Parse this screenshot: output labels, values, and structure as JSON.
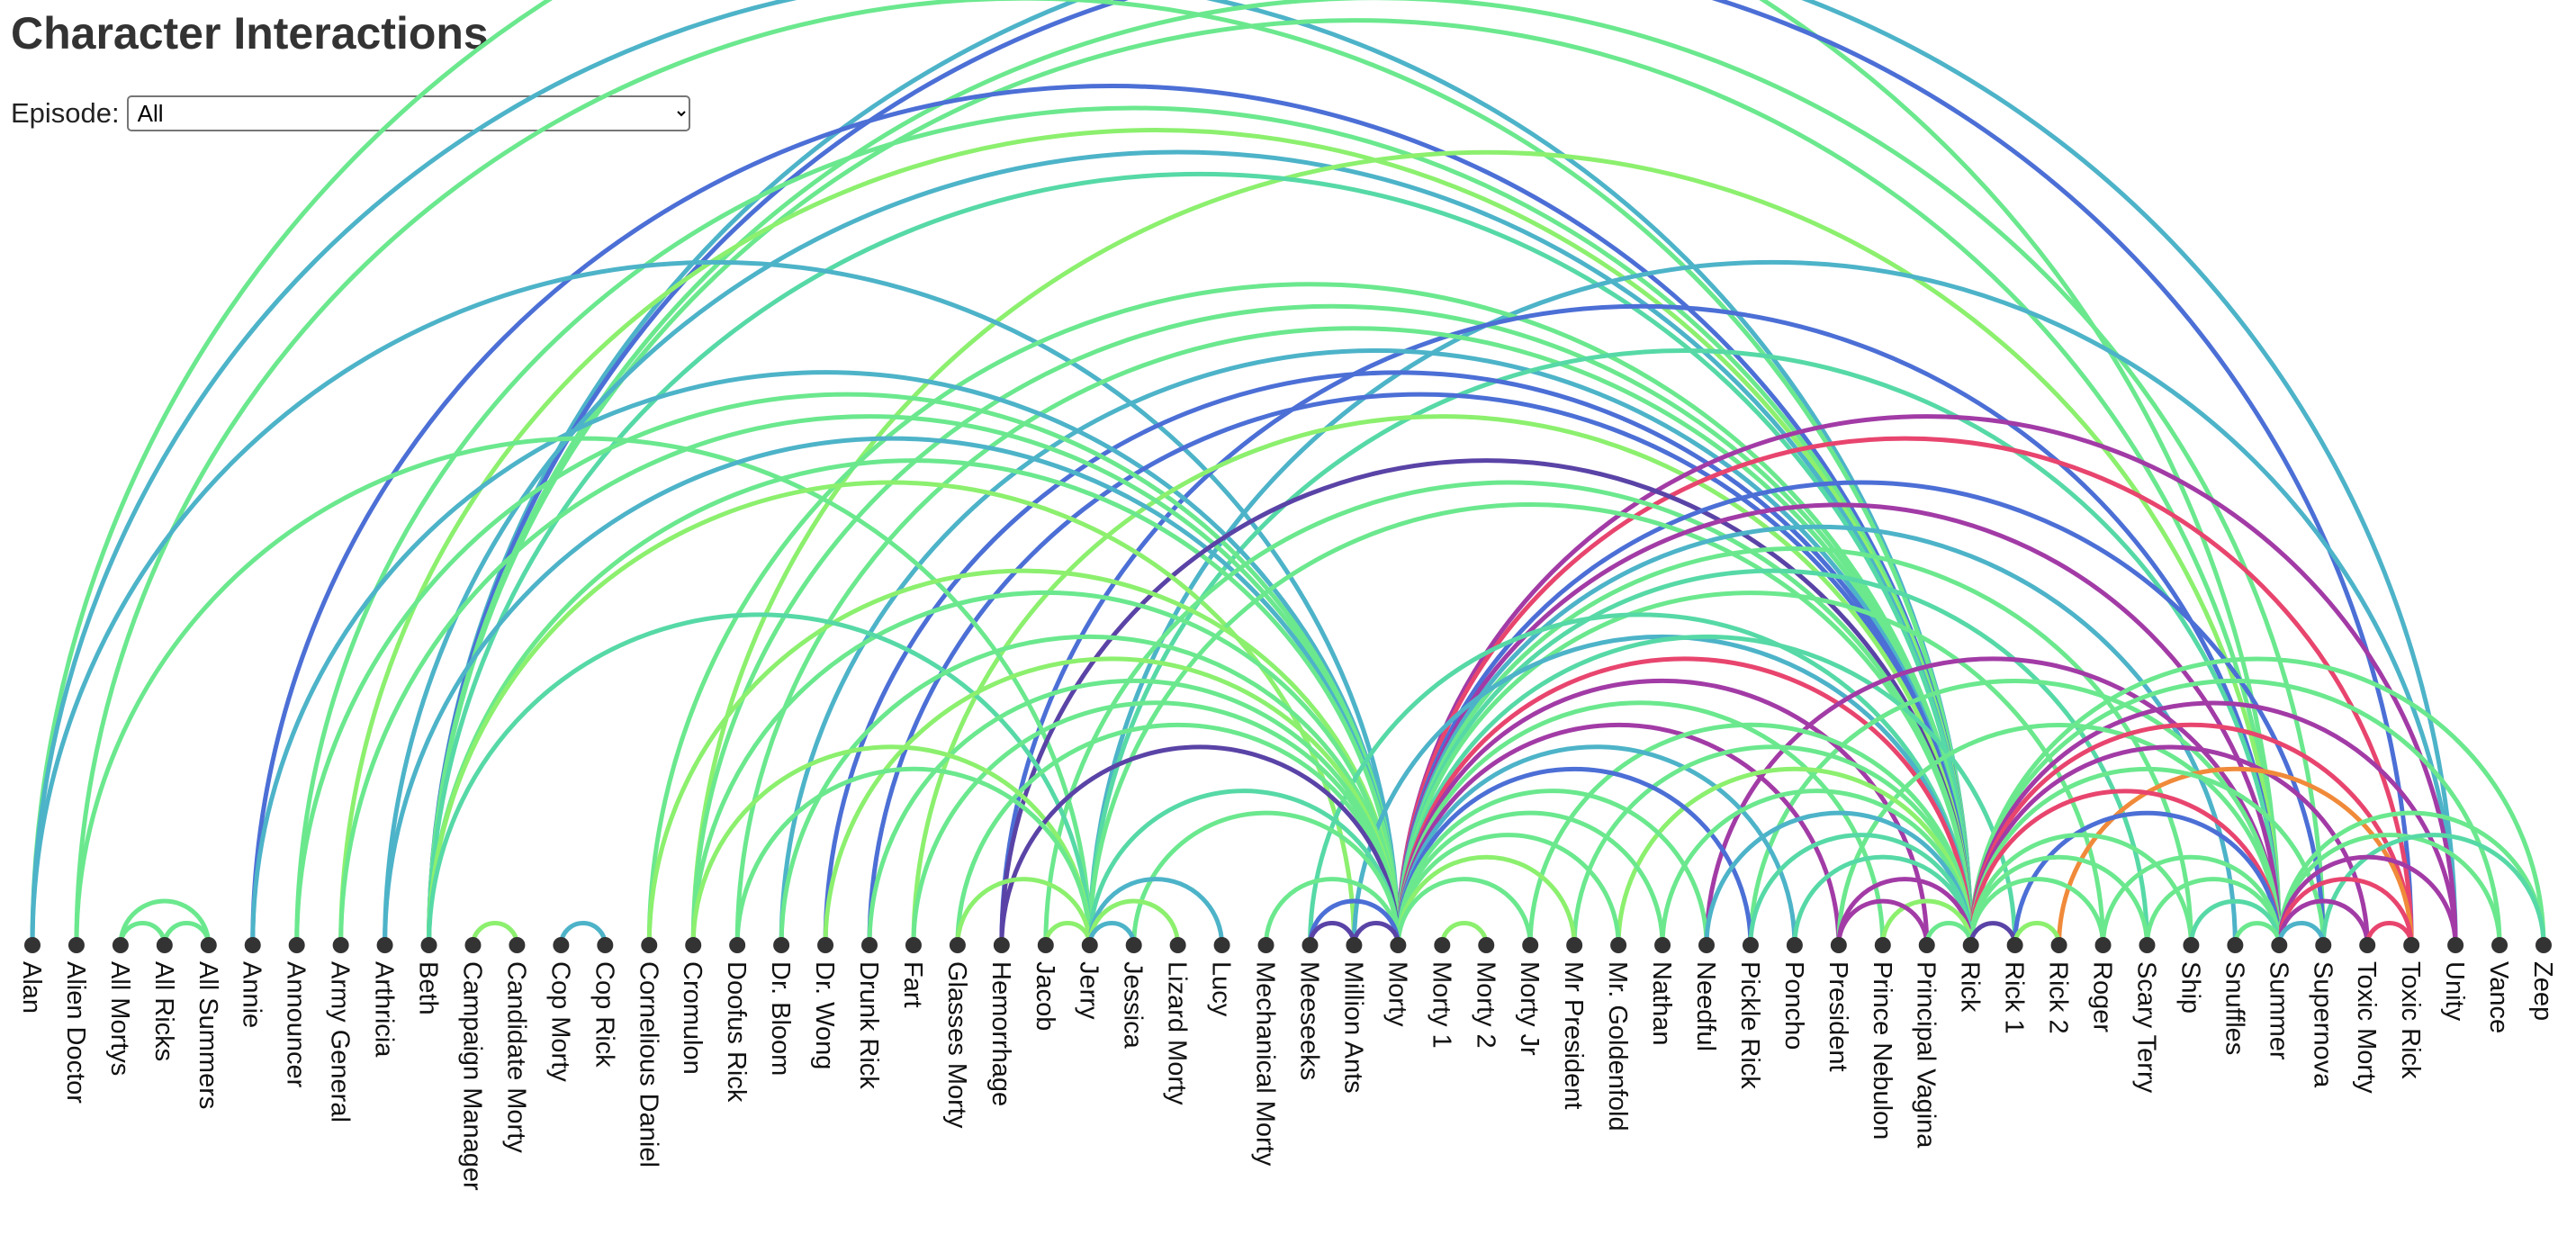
{
  "title": "Character Interactions",
  "episode_filter": {
    "label": "Episode:",
    "selected": "All",
    "options": [
      "All"
    ]
  },
  "colors": {
    "text": "#333333",
    "node": "#333333",
    "weight_palette": [
      "#8cf06e",
      "#6be88e",
      "#56d9a6",
      "#4db3c8",
      "#4c6fd6",
      "#5a43a6",
      "#a23ba6",
      "#e8456e",
      "#f08a3a"
    ]
  },
  "chart_data": {
    "type": "arc",
    "nodes": [
      "Alan",
      "Alien Doctor",
      "All Mortys",
      "All Ricks",
      "All Summers",
      "Annie",
      "Announcer",
      "Army General",
      "Arthricia",
      "Beth",
      "Campaign Manager",
      "Candidate Morty",
      "Cop Morty",
      "Cop Rick",
      "Cornelious Daniel",
      "Cromulon",
      "Doofus Rick",
      "Dr. Bloom",
      "Dr. Wong",
      "Drunk Rick",
      "Fart",
      "Glasses Morty",
      "Hemorrhage",
      "Jacob",
      "Jerry",
      "Jessica",
      "Lizard Morty",
      "Lucy",
      "Mechanical Morty",
      "Meeseeks",
      "Million Ants",
      "Morty",
      "Morty 1",
      "Morty 2",
      "Morty Jr",
      "Mr President",
      "Mr. Goldenfold",
      "Nathan",
      "Needful",
      "Pickle Rick",
      "Poncho",
      "President",
      "Prince Nebulon",
      "Principal Vagina",
      "Rick",
      "Rick 1",
      "Rick 2",
      "Roger",
      "Scary Terry",
      "Ship",
      "Snuffles",
      "Summer",
      "Supernova",
      "Toxic Morty",
      "Toxic Rick",
      "Unity",
      "Vance",
      "Zeep"
    ],
    "links": [
      {
        "source": "Alan",
        "target": "Morty",
        "weight": 3
      },
      {
        "source": "Alan",
        "target": "Rick",
        "weight": 3
      },
      {
        "source": "Alan",
        "target": "Summer",
        "weight": 1
      },
      {
        "source": "Alien Doctor",
        "target": "Jerry",
        "weight": 1
      },
      {
        "source": "Alien Doctor",
        "target": "Rick",
        "weight": 1
      },
      {
        "source": "All Mortys",
        "target": "All Ricks",
        "weight": 1
      },
      {
        "source": "All Mortys",
        "target": "All Summers",
        "weight": 1
      },
      {
        "source": "All Ricks",
        "target": "All Summers",
        "weight": 1
      },
      {
        "source": "Annie",
        "target": "Morty",
        "weight": 3
      },
      {
        "source": "Annie",
        "target": "Rick",
        "weight": 4
      },
      {
        "source": "Announcer",
        "target": "Morty",
        "weight": 1
      },
      {
        "source": "Announcer",
        "target": "Rick",
        "weight": 1
      },
      {
        "source": "Army General",
        "target": "Morty",
        "weight": 1
      },
      {
        "source": "Army General",
        "target": "Rick",
        "weight": 0
      },
      {
        "source": "Arthricia",
        "target": "Morty",
        "weight": 3
      },
      {
        "source": "Arthricia",
        "target": "Rick",
        "weight": 3
      },
      {
        "source": "Beth",
        "target": "Jerry",
        "weight": 2
      },
      {
        "source": "Beth",
        "target": "Morty",
        "weight": 1
      },
      {
        "source": "Beth",
        "target": "Rick",
        "weight": 2
      },
      {
        "source": "Beth",
        "target": "Summer",
        "weight": 1
      },
      {
        "source": "Beth",
        "target": "Million Ants",
        "weight": 0
      },
      {
        "source": "Beth",
        "target": "Toxic Rick",
        "weight": 4
      },
      {
        "source": "Beth",
        "target": "Supernova",
        "weight": 1
      },
      {
        "source": "Beth",
        "target": "Unity",
        "weight": 3
      },
      {
        "source": "Campaign Manager",
        "target": "Candidate Morty",
        "weight": 0
      },
      {
        "source": "Cop Morty",
        "target": "Cop Rick",
        "weight": 3
      },
      {
        "source": "Cornelious Daniel",
        "target": "Morty",
        "weight": 0
      },
      {
        "source": "Cornelious Daniel",
        "target": "Rick",
        "weight": 1
      },
      {
        "source": "Cromulon",
        "target": "Jerry",
        "weight": 0
      },
      {
        "source": "Cromulon",
        "target": "Morty",
        "weight": 1
      },
      {
        "source": "Cromulon",
        "target": "Rick",
        "weight": 1
      },
      {
        "source": "Cromulon",
        "target": "Summer",
        "weight": 0
      },
      {
        "source": "Doofus Rick",
        "target": "Rick",
        "weight": 1
      },
      {
        "source": "Doofus Rick",
        "target": "Jerry",
        "weight": 1
      },
      {
        "source": "Dr. Bloom",
        "target": "Morty",
        "weight": 1
      },
      {
        "source": "Dr. Bloom",
        "target": "Rick",
        "weight": 3
      },
      {
        "source": "Dr. Wong",
        "target": "Rick",
        "weight": 4
      },
      {
        "source": "Dr. Wong",
        "target": "Morty",
        "weight": 0
      },
      {
        "source": "Drunk Rick",
        "target": "Rick",
        "weight": 4
      },
      {
        "source": "Drunk Rick",
        "target": "Morty",
        "weight": 1
      },
      {
        "source": "Fart",
        "target": "Morty",
        "weight": 1
      },
      {
        "source": "Fart",
        "target": "Rick",
        "weight": 0
      },
      {
        "source": "Glasses Morty",
        "target": "Jerry",
        "weight": 0
      },
      {
        "source": "Glasses Morty",
        "target": "Morty",
        "weight": 1
      },
      {
        "source": "Hemorrhage",
        "target": "Morty",
        "weight": 5
      },
      {
        "source": "Hemorrhage",
        "target": "Rick",
        "weight": 5
      },
      {
        "source": "Hemorrhage",
        "target": "Summer",
        "weight": 4
      },
      {
        "source": "Jacob",
        "target": "Jerry",
        "weight": 0
      },
      {
        "source": "Jacob",
        "target": "Rick",
        "weight": 1
      },
      {
        "source": "Jerry",
        "target": "Jessica",
        "weight": 3
      },
      {
        "source": "Jerry",
        "target": "Lucy",
        "weight": 3
      },
      {
        "source": "Jerry",
        "target": "Morty",
        "weight": 2
      },
      {
        "source": "Jerry",
        "target": "Rick",
        "weight": 1
      },
      {
        "source": "Jerry",
        "target": "Summer",
        "weight": 2
      },
      {
        "source": "Jerry",
        "target": "Unity",
        "weight": 3
      },
      {
        "source": "Jessica",
        "target": "Morty",
        "weight": 1
      },
      {
        "source": "Lizard Morty",
        "target": "Jerry",
        "weight": 0
      },
      {
        "source": "Mechanical Morty",
        "target": "Morty",
        "weight": 1
      },
      {
        "source": "Meeseeks",
        "target": "Morty",
        "weight": 4
      },
      {
        "source": "Meeseeks",
        "target": "Rick",
        "weight": 2
      },
      {
        "source": "Meeseeks",
        "target": "Million Ants",
        "weight": 5
      },
      {
        "source": "Million Ants",
        "target": "Morty",
        "weight": 5
      },
      {
        "source": "Million Ants",
        "target": "Rick",
        "weight": 3
      },
      {
        "source": "Morty",
        "target": "Rick",
        "weight": 7
      },
      {
        "source": "Morty",
        "target": "Summer",
        "weight": 6
      },
      {
        "source": "Morty",
        "target": "President",
        "weight": 6
      },
      {
        "source": "Morty",
        "target": "Toxic Rick",
        "weight": 7
      },
      {
        "source": "Morty",
        "target": "Unity",
        "weight": 6
      },
      {
        "source": "Morty",
        "target": "Morty Jr",
        "weight": 1
      },
      {
        "source": "Morty",
        "target": "Needful",
        "weight": 1
      },
      {
        "source": "Morty",
        "target": "Pickle Rick",
        "weight": 4
      },
      {
        "source": "Morty",
        "target": "Poncho",
        "weight": 3
      },
      {
        "source": "Morty",
        "target": "Roger",
        "weight": 1
      },
      {
        "source": "Morty",
        "target": "Ship",
        "weight": 1
      },
      {
        "source": "Morty",
        "target": "Snuffles",
        "weight": 3
      },
      {
        "source": "Morty",
        "target": "Supernova",
        "weight": 4
      },
      {
        "source": "Morty",
        "target": "Scary Terry",
        "weight": 2
      },
      {
        "source": "Morty",
        "target": "Rick 1",
        "weight": 2
      },
      {
        "source": "Morty",
        "target": "Principal Vagina",
        "weight": 6
      },
      {
        "source": "Morty",
        "target": "Prince Nebulon",
        "weight": 1
      },
      {
        "source": "Morty",
        "target": "Nathan",
        "weight": 1
      },
      {
        "source": "Morty",
        "target": "Mr. Goldenfold",
        "weight": 1
      },
      {
        "source": "Morty",
        "target": "Mr President",
        "weight": 0
      },
      {
        "source": "Morty 1",
        "target": "Morty 2",
        "weight": 0
      },
      {
        "source": "Morty Jr",
        "target": "Rick",
        "weight": 1
      },
      {
        "source": "Mr President",
        "target": "Rick",
        "weight": 1
      },
      {
        "source": "Mr. Goldenfold",
        "target": "Rick",
        "weight": 0
      },
      {
        "source": "Nathan",
        "target": "Rick",
        "weight": 1
      },
      {
        "source": "Needful",
        "target": "Rick",
        "weight": 3
      },
      {
        "source": "Needful",
        "target": "Summer",
        "weight": 6
      },
      {
        "source": "Pickle Rick",
        "target": "Rick",
        "weight": 2
      },
      {
        "source": "Pickle Rick",
        "target": "Summer",
        "weight": 1
      },
      {
        "source": "Poncho",
        "target": "Rick",
        "weight": 2
      },
      {
        "source": "President",
        "target": "Rick",
        "weight": 6
      },
      {
        "source": "President",
        "target": "Principal Vagina",
        "weight": 6
      },
      {
        "source": "President",
        "target": "Summer",
        "weight": 1
      },
      {
        "source": "Prince Nebulon",
        "target": "Rick",
        "weight": 0
      },
      {
        "source": "Principal Vagina",
        "target": "Rick",
        "weight": 1
      },
      {
        "source": "Rick",
        "target": "Rick 1",
        "weight": 5
      },
      {
        "source": "Rick",
        "target": "Summer",
        "weight": 7
      },
      {
        "source": "Rick",
        "target": "Toxic Rick",
        "weight": 7
      },
      {
        "source": "Rick",
        "target": "Toxic Morty",
        "weight": 6
      },
      {
        "source": "Rick",
        "target": "Unity",
        "weight": 6
      },
      {
        "source": "Rick",
        "target": "Supernova",
        "weight": 1
      },
      {
        "source": "Rick",
        "target": "Scary Terry",
        "weight": 1
      },
      {
        "source": "Rick",
        "target": "Ship",
        "weight": 1
      },
      {
        "source": "Rick",
        "target": "Roger",
        "weight": 1
      },
      {
        "source": "Rick",
        "target": "Zeep",
        "weight": 1
      },
      {
        "source": "Rick",
        "target": "Vance",
        "weight": 1
      },
      {
        "source": "Rick 1",
        "target": "Rick 2",
        "weight": 0
      },
      {
        "source": "Rick 1",
        "target": "Summer",
        "weight": 4
      },
      {
        "source": "Rick 2",
        "target": "Toxic Rick",
        "weight": 8
      },
      {
        "source": "Roger",
        "target": "Summer",
        "weight": 1
      },
      {
        "source": "Scary Terry",
        "target": "Summer",
        "weight": 1
      },
      {
        "source": "Ship",
        "target": "Summer",
        "weight": 2
      },
      {
        "source": "Snuffles",
        "target": "Summer",
        "weight": 1
      },
      {
        "source": "Summer",
        "target": "Supernova",
        "weight": 3
      },
      {
        "source": "Summer",
        "target": "Toxic Rick",
        "weight": 7
      },
      {
        "source": "Summer",
        "target": "Toxic Morty",
        "weight": 6
      },
      {
        "source": "Summer",
        "target": "Unity",
        "weight": 6
      },
      {
        "source": "Summer",
        "target": "Zeep",
        "weight": 1
      },
      {
        "source": "Summer",
        "target": "Vance",
        "weight": 1
      },
      {
        "source": "Toxic Morty",
        "target": "Toxic Rick",
        "weight": 7
      },
      {
        "source": "Supernova",
        "target": "Zeep",
        "weight": 2
      }
    ]
  }
}
